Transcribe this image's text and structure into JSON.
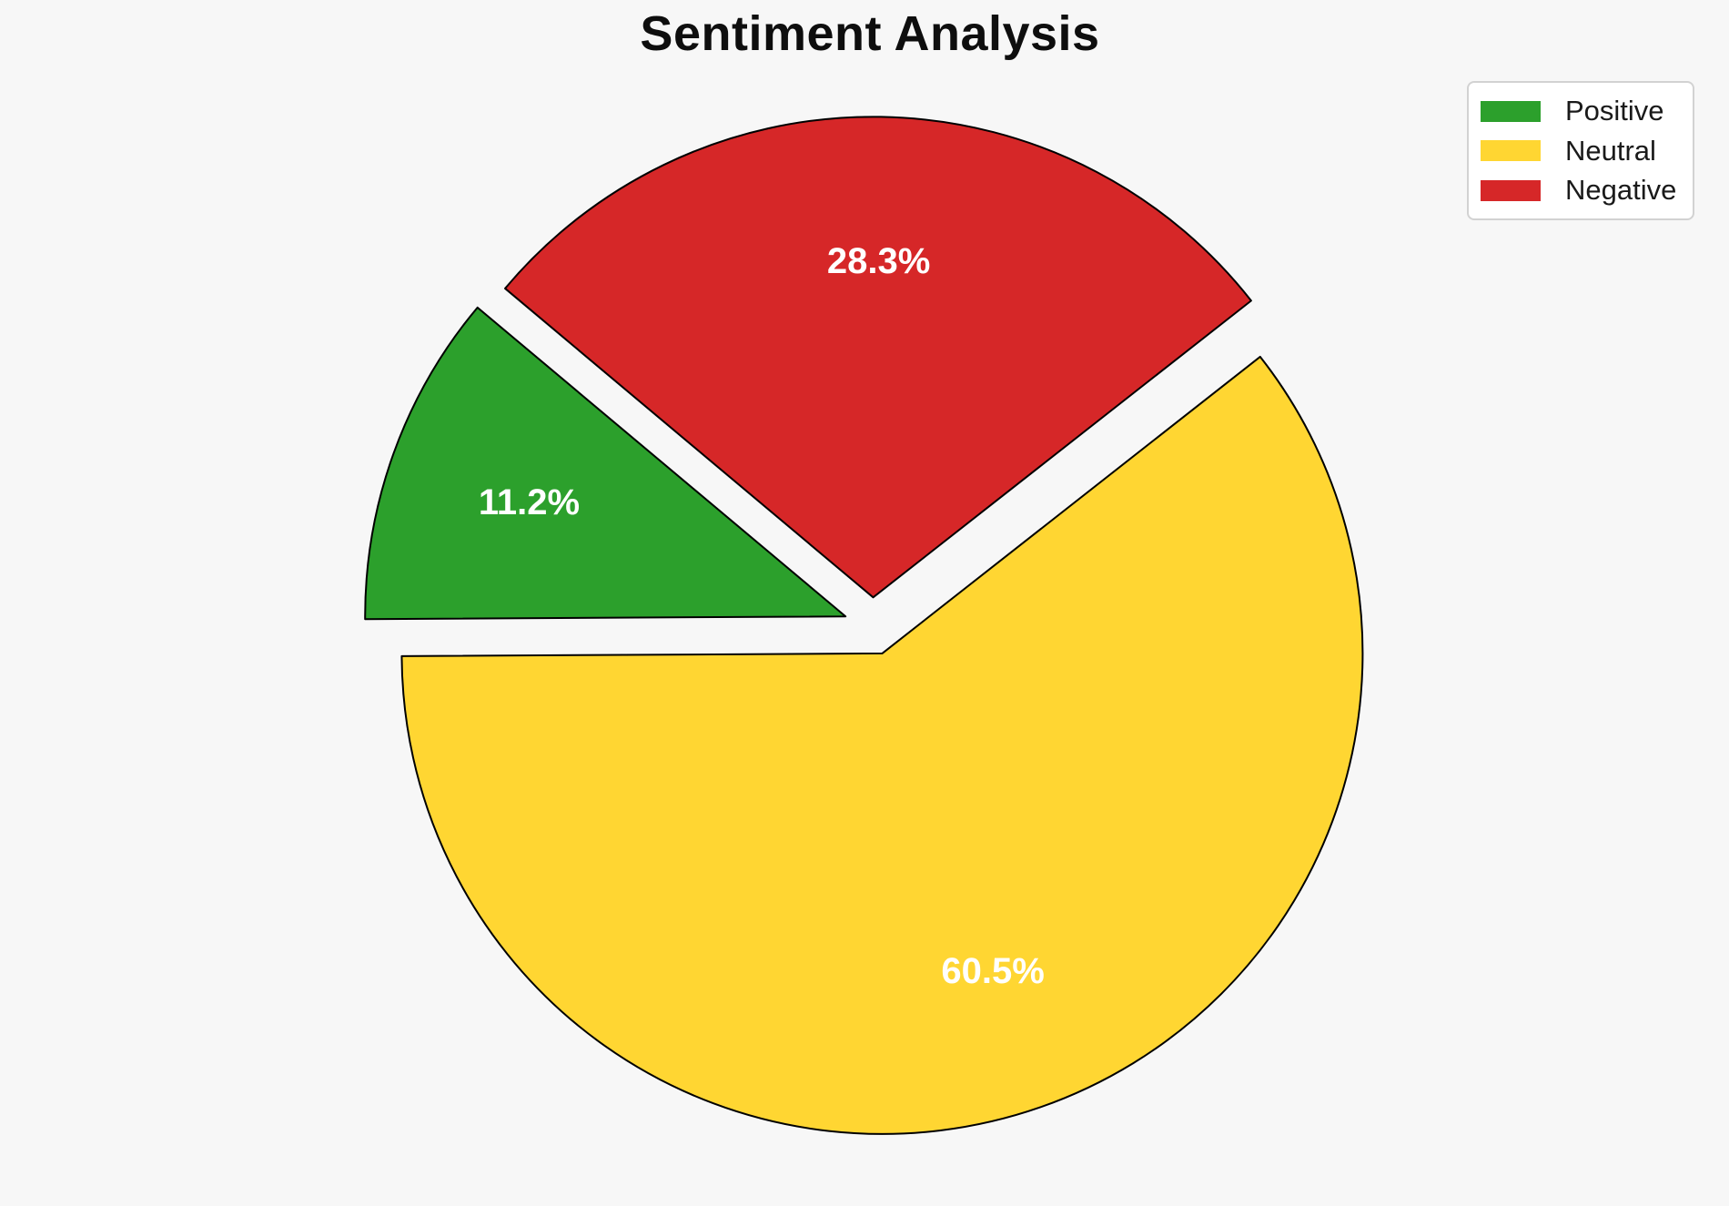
{
  "chart_data": {
    "type": "pie",
    "title": "Sentiment Analysis",
    "labels": [
      "Positive",
      "Neutral",
      "Negative"
    ],
    "values": [
      11.2,
      60.5,
      28.3
    ],
    "value_labels": [
      "11.2%",
      "60.5%",
      "28.3%"
    ],
    "colors": [
      "#2ca02c",
      "#ffd632",
      "#d62728"
    ],
    "edge_color": "#000000",
    "slice_label_color": "#ffffff",
    "startangle": 140,
    "counterclock": true,
    "explode": [
      0.06,
      0.06,
      0.06
    ],
    "pctdistance": 0.7,
    "legend_position": "upper right",
    "background_color": "#f7f7f7"
  }
}
